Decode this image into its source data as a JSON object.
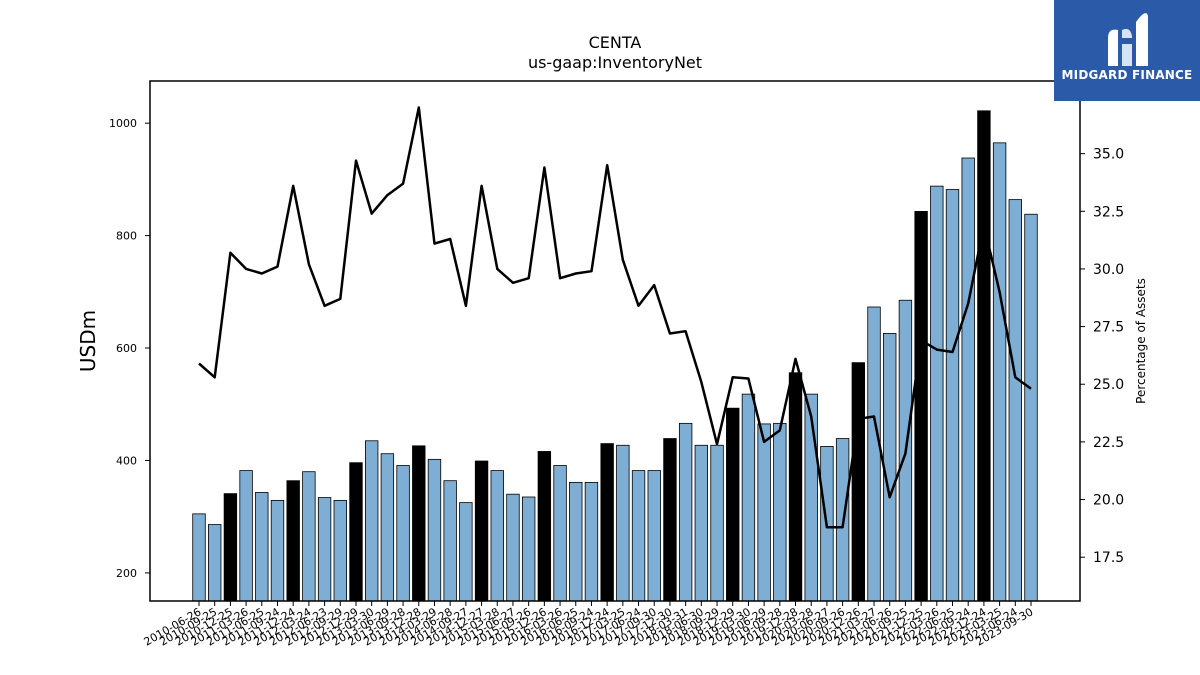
{
  "brand": {
    "name": "MIDGARD FINANCE",
    "logo_icon": "midgard-m-logo-icon",
    "background": "#2b5aa8"
  },
  "colors": {
    "bar_normal": "#7eaed3",
    "bar_highlight": "#000000",
    "line": "#000000"
  },
  "chart_data": {
    "type": "bar",
    "title": "CENTA",
    "subtitle": "us-gaap:InventoryNet",
    "ylabel": "USDm",
    "y2label": "Percentage of Assets",
    "ylim": [
      150,
      1075
    ],
    "y2lim": [
      15.6,
      38.15
    ],
    "yticks": [
      200,
      400,
      600,
      800,
      1000
    ],
    "y2ticks": [
      "17.5",
      "20.0",
      "22.5",
      "25.0",
      "27.5",
      "30.0",
      "32.5",
      "35.0"
    ],
    "categories": [
      "2010-06-26",
      "2010-09-25",
      "2010-12-25",
      "2011-03-26",
      "2011-06-25",
      "2011-09-24",
      "2011-12-24",
      "2012-03-24",
      "2012-06-23",
      "2012-09-29",
      "2012-12-29",
      "2013-03-30",
      "2013-06-29",
      "2013-09-28",
      "2013-12-28",
      "2014-03-29",
      "2014-06-28",
      "2014-09-27",
      "2014-12-27",
      "2015-03-28",
      "2015-06-27",
      "2015-09-26",
      "2015-12-26",
      "2016-03-26",
      "2016-06-25",
      "2016-09-24",
      "2016-12-24",
      "2017-03-25",
      "2017-06-24",
      "2017-09-30",
      "2017-12-30",
      "2018-03-31",
      "2018-06-30",
      "2018-09-29",
      "2018-12-29",
      "2019-03-30",
      "2019-06-29",
      "2019-09-28",
      "2019-12-28",
      "2020-03-28",
      "2020-06-27",
      "2020-09-26",
      "2020-12-26",
      "2021-03-27",
      "2021-06-26",
      "2021-09-25",
      "2021-12-25",
      "2022-03-26",
      "2022-06-25",
      "2022-09-24",
      "2022-12-24",
      "2023-03-25",
      "2023-06-24",
      "2023-09-30"
    ],
    "series": [
      {
        "type": "bar",
        "values": [
          305,
          286,
          341,
          382,
          343,
          329,
          364,
          380,
          334,
          329,
          396,
          435,
          412,
          391,
          426,
          402,
          364,
          325,
          399,
          382,
          340,
          335,
          416,
          391,
          361,
          361,
          430,
          427,
          382,
          382,
          439,
          466,
          427,
          427,
          493,
          518,
          465,
          466,
          556,
          518,
          425,
          439,
          574,
          673,
          626,
          685,
          843,
          888,
          882,
          938,
          1022,
          965,
          864,
          838
        ],
        "highlight": [
          false,
          false,
          true,
          false,
          false,
          false,
          true,
          false,
          false,
          false,
          true,
          false,
          false,
          false,
          true,
          false,
          false,
          false,
          true,
          false,
          false,
          false,
          true,
          false,
          false,
          false,
          true,
          false,
          false,
          false,
          true,
          false,
          false,
          false,
          true,
          false,
          false,
          false,
          true,
          false,
          false,
          false,
          true,
          false,
          false,
          false,
          true,
          false,
          false,
          false,
          true,
          false,
          false,
          false
        ]
      },
      {
        "type": "line",
        "axis": "right",
        "values": [
          25.9,
          25.3,
          30.7,
          30.0,
          29.8,
          30.1,
          33.6,
          30.2,
          28.4,
          28.7,
          34.7,
          32.4,
          33.2,
          33.7,
          37.0,
          31.1,
          31.3,
          28.4,
          33.6,
          30.0,
          29.4,
          29.6,
          34.4,
          29.6,
          29.8,
          29.9,
          34.5,
          30.4,
          28.4,
          29.3,
          27.2,
          27.3,
          25.1,
          22.4,
          25.3,
          25.25,
          22.5,
          23.0,
          26.1,
          23.6,
          18.8,
          18.8,
          23.5,
          23.6,
          20.1,
          22.0,
          26.9,
          26.5,
          26.4,
          28.5,
          31.9,
          29.0,
          25.3,
          24.8
        ]
      }
    ]
  }
}
